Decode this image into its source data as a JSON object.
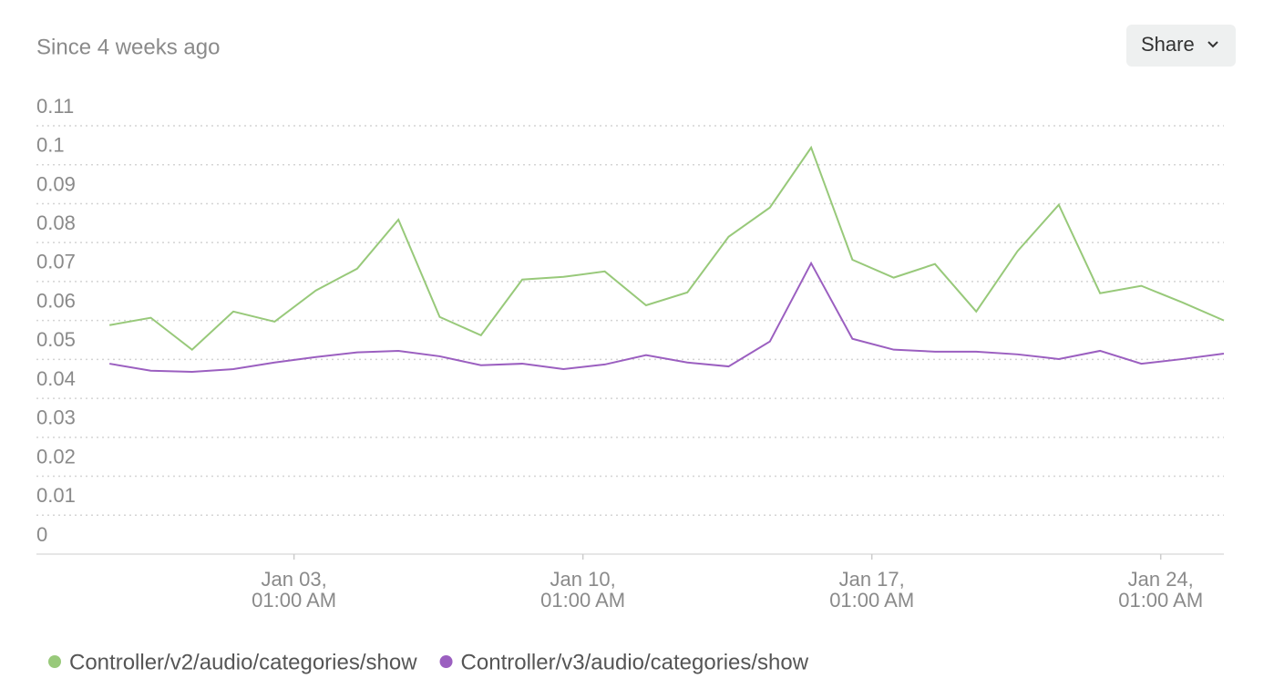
{
  "header": {
    "title": "Since 4 weeks ago",
    "button": "Share"
  },
  "chart_data": {
    "type": "line",
    "x": [
      0,
      1,
      2,
      3,
      4,
      5,
      6,
      7,
      8,
      9,
      10,
      11,
      12,
      13,
      14,
      15,
      16,
      17,
      18,
      19,
      20,
      21,
      22,
      23,
      24,
      25,
      26,
      27
    ],
    "xlim": [
      -1.77,
      27
    ],
    "xticks": [
      {
        "value": 4.47,
        "label": "Jan 03, 01:00 AM"
      },
      {
        "value": 11.47,
        "label": "Jan 10, 01:00 AM"
      },
      {
        "value": 18.47,
        "label": "Jan 17, 01:00 AM"
      },
      {
        "value": 25.47,
        "label": "Jan 24, 01:00 AM"
      }
    ],
    "ylim": [
      0,
      0.11
    ],
    "yticks": [
      0,
      0.01,
      0.02,
      0.03,
      0.04,
      0.05,
      0.06,
      0.07,
      0.08,
      0.09,
      0.1,
      0.11
    ],
    "grid": true,
    "legend": "bottom",
    "series": [
      {
        "name": "Controller/v2/audio/categories/show",
        "color": "#98c97a",
        "values": [
          0.0588,
          0.0607,
          0.0525,
          0.0623,
          0.0597,
          0.0677,
          0.0733,
          0.0859,
          0.0609,
          0.0562,
          0.0705,
          0.0712,
          0.0726,
          0.0639,
          0.0672,
          0.0815,
          0.089,
          0.1044,
          0.0756,
          0.071,
          0.0745,
          0.0623,
          0.0778,
          0.0897,
          0.067,
          0.0689,
          0.0646,
          0.06
        ]
      },
      {
        "name": "Controller/v3/audio/categories/show",
        "color": "#9b5fc0",
        "values": [
          0.0489,
          0.0471,
          0.0468,
          0.0475,
          0.0492,
          0.0506,
          0.0518,
          0.0522,
          0.0508,
          0.0485,
          0.0489,
          0.0475,
          0.0487,
          0.0511,
          0.0492,
          0.0482,
          0.0546,
          0.0747,
          0.0553,
          0.0525,
          0.052,
          0.052,
          0.0513,
          0.0501,
          0.0522,
          0.0489,
          0.0501,
          0.0515
        ]
      }
    ]
  }
}
